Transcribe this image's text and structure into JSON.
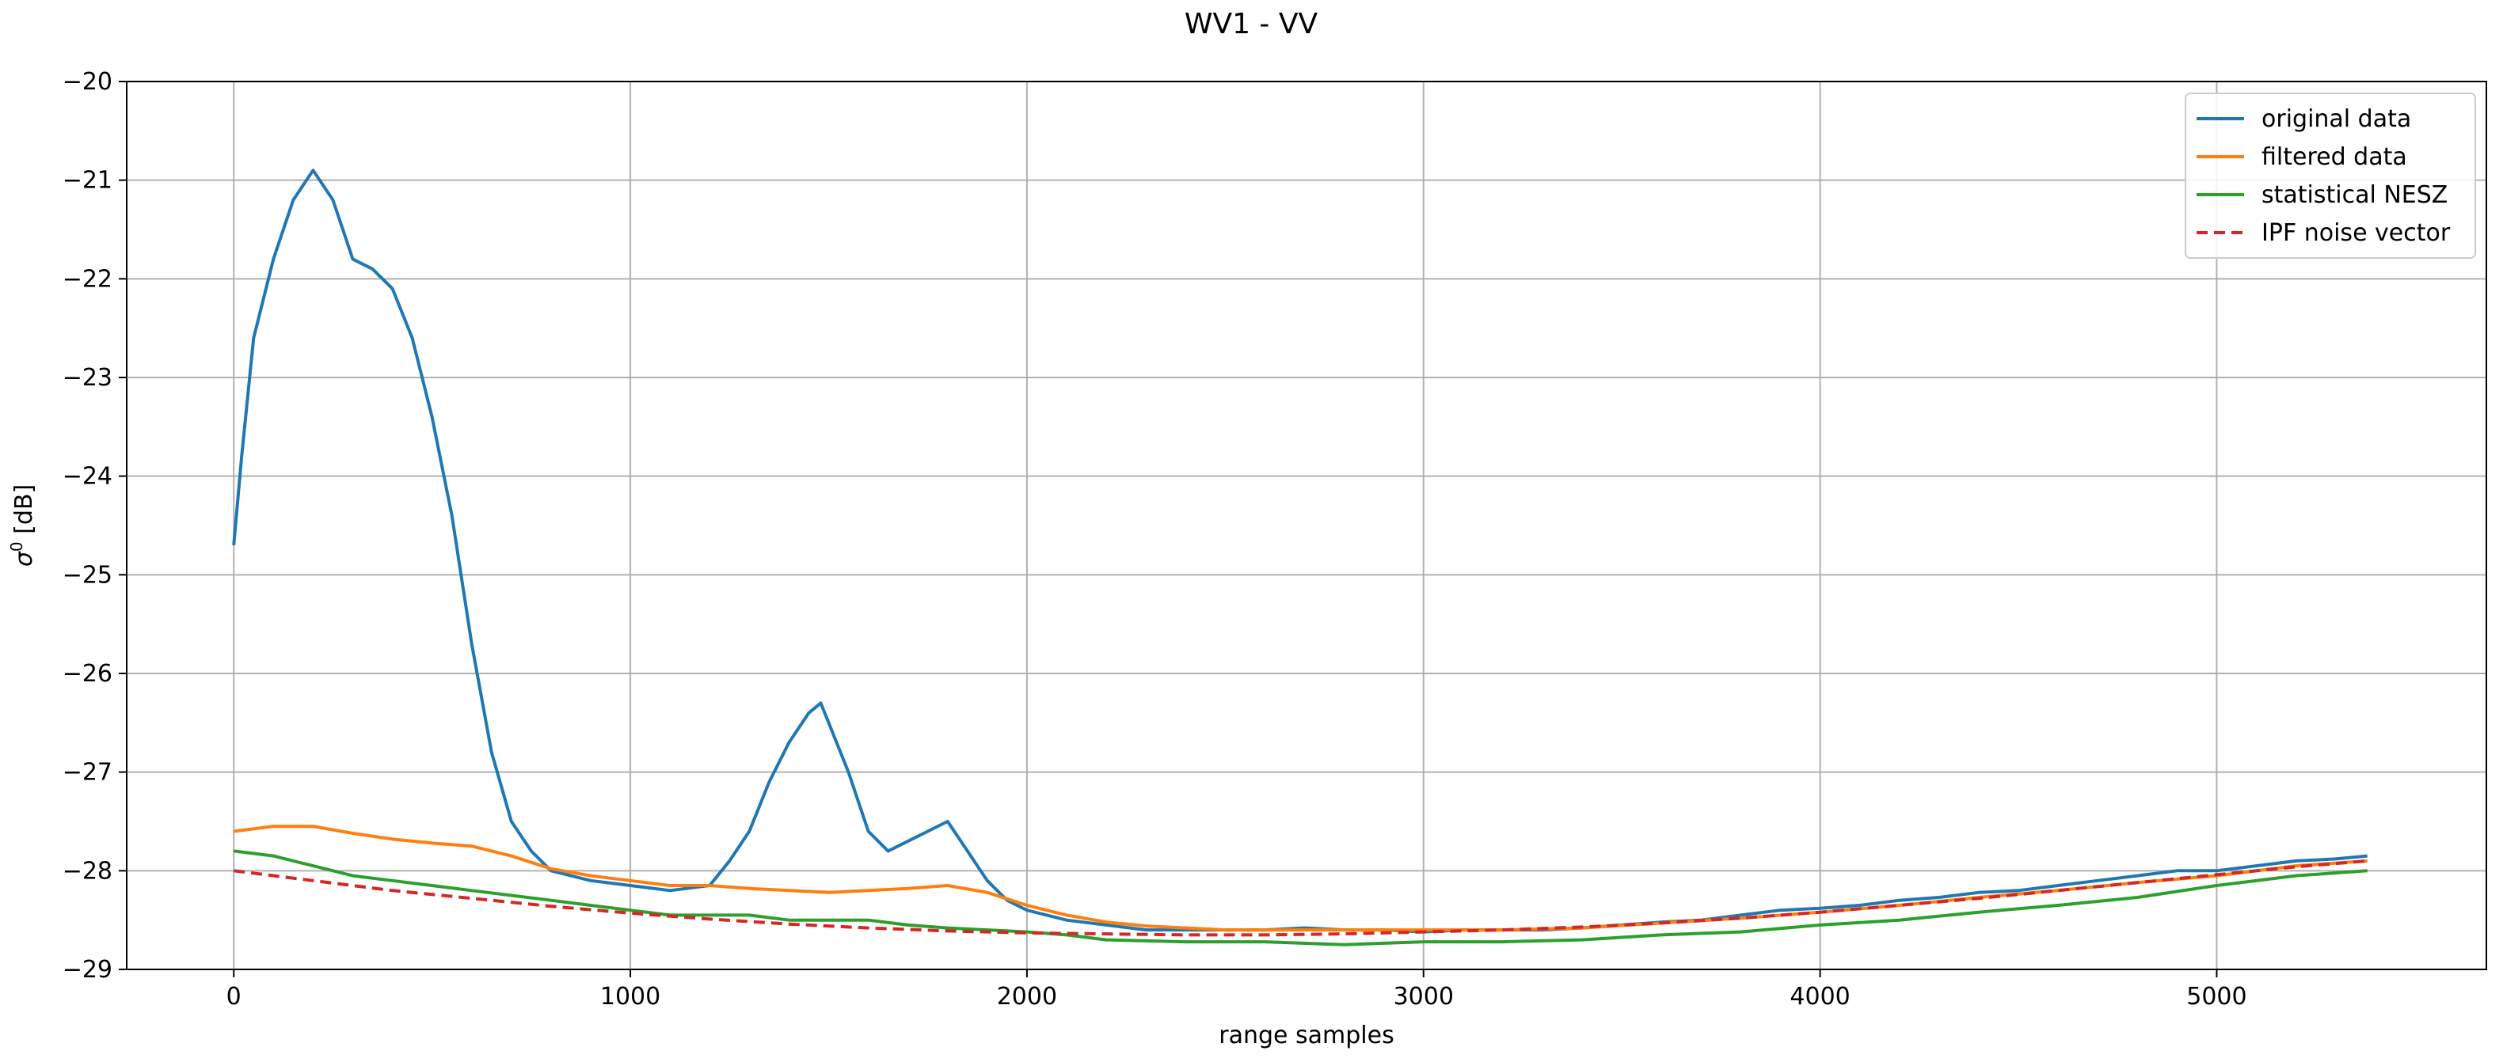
{
  "chart_data": {
    "type": "line",
    "title": "WV1 - VV",
    "xlabel": "range samples",
    "ylabel_symbol": "σ",
    "ylabel_superscript": "0",
    "ylabel_unit": " [dB]",
    "xlim": [
      -270,
      5680
    ],
    "ylim": [
      -29,
      -20
    ],
    "x_ticks": [
      0,
      1000,
      2000,
      3000,
      4000,
      5000
    ],
    "x_tick_labels": [
      "0",
      "1000",
      "2000",
      "3000",
      "4000",
      "5000"
    ],
    "y_ticks": [
      -29,
      -28,
      -27,
      -26,
      -25,
      -24,
      -23,
      -22,
      -21,
      -20
    ],
    "y_tick_labels": [
      "−29",
      "−28",
      "−27",
      "−26",
      "−25",
      "−24",
      "−23",
      "−22",
      "−21",
      "−20"
    ],
    "grid": true,
    "legend_position": "upper-right",
    "series": [
      {
        "name": "original data",
        "color": "#1f77b4",
        "style": "solid",
        "x": [
          0,
          20,
          50,
          100,
          150,
          200,
          250,
          300,
          350,
          400,
          450,
          500,
          550,
          600,
          650,
          700,
          750,
          800,
          900,
          1000,
          1100,
          1200,
          1250,
          1300,
          1350,
          1400,
          1450,
          1480,
          1500,
          1550,
          1600,
          1650,
          1700,
          1750,
          1800,
          1850,
          1900,
          1950,
          2000,
          2100,
          2200,
          2300,
          2400,
          2500,
          2600,
          2700,
          2800,
          2900,
          3000,
          3100,
          3200,
          3300,
          3400,
          3500,
          3600,
          3700,
          3800,
          3900,
          4000,
          4100,
          4200,
          4300,
          4400,
          4500,
          4600,
          4700,
          4800,
          4900,
          5000,
          5100,
          5200,
          5300,
          5380
        ],
        "y": [
          -24.7,
          -23.8,
          -22.6,
          -21.8,
          -21.2,
          -20.9,
          -21.2,
          -21.8,
          -21.9,
          -22.1,
          -22.6,
          -23.4,
          -24.4,
          -25.7,
          -26.8,
          -27.5,
          -27.8,
          -28.0,
          -28.1,
          -28.15,
          -28.2,
          -28.15,
          -27.9,
          -27.6,
          -27.1,
          -26.7,
          -26.4,
          -26.3,
          -26.5,
          -27.0,
          -27.6,
          -27.8,
          -27.7,
          -27.6,
          -27.5,
          -27.8,
          -28.1,
          -28.3,
          -28.4,
          -28.5,
          -28.55,
          -28.6,
          -28.6,
          -28.6,
          -28.6,
          -28.58,
          -28.6,
          -28.6,
          -28.62,
          -28.6,
          -28.6,
          -28.6,
          -28.58,
          -28.55,
          -28.52,
          -28.5,
          -28.45,
          -28.4,
          -28.38,
          -28.35,
          -28.3,
          -28.27,
          -28.22,
          -28.2,
          -28.15,
          -28.1,
          -28.05,
          -28.0,
          -28.0,
          -27.95,
          -27.9,
          -27.88,
          -27.85
        ]
      },
      {
        "name": "filtered data",
        "color": "#ff7f0e",
        "style": "solid",
        "x": [
          0,
          100,
          200,
          300,
          400,
          500,
          600,
          700,
          800,
          900,
          1000,
          1100,
          1200,
          1300,
          1400,
          1500,
          1600,
          1700,
          1800,
          1900,
          2000,
          2100,
          2200,
          2300,
          2400,
          2500,
          2600,
          2800,
          3000,
          3200,
          3400,
          3600,
          3800,
          4000,
          4200,
          4400,
          4600,
          4800,
          5000,
          5200,
          5380
        ],
        "y": [
          -27.6,
          -27.55,
          -27.55,
          -27.62,
          -27.68,
          -27.72,
          -27.75,
          -27.85,
          -27.98,
          -28.05,
          -28.1,
          -28.15,
          -28.15,
          -28.18,
          -28.2,
          -28.22,
          -28.2,
          -28.18,
          -28.15,
          -28.22,
          -28.35,
          -28.45,
          -28.52,
          -28.56,
          -28.58,
          -28.6,
          -28.6,
          -28.6,
          -28.6,
          -28.6,
          -28.58,
          -28.53,
          -28.48,
          -28.42,
          -28.35,
          -28.27,
          -28.2,
          -28.12,
          -28.05,
          -27.95,
          -27.9
        ]
      },
      {
        "name": "statistical NESZ",
        "color": "#2ca02c",
        "style": "solid",
        "x": [
          0,
          100,
          200,
          300,
          400,
          500,
          600,
          700,
          800,
          900,
          1000,
          1100,
          1200,
          1300,
          1400,
          1500,
          1600,
          1700,
          1800,
          1900,
          2000,
          2100,
          2200,
          2400,
          2600,
          2800,
          3000,
          3200,
          3400,
          3600,
          3800,
          4000,
          4200,
          4400,
          4600,
          4800,
          5000,
          5200,
          5380
        ],
        "y": [
          -27.8,
          -27.85,
          -27.95,
          -28.05,
          -28.1,
          -28.15,
          -28.2,
          -28.25,
          -28.3,
          -28.35,
          -28.4,
          -28.45,
          -28.45,
          -28.45,
          -28.5,
          -28.5,
          -28.5,
          -28.55,
          -28.58,
          -28.6,
          -28.62,
          -28.65,
          -28.7,
          -28.72,
          -28.72,
          -28.75,
          -28.72,
          -28.72,
          -28.7,
          -28.65,
          -28.62,
          -28.55,
          -28.5,
          -28.42,
          -28.35,
          -28.27,
          -28.15,
          -28.05,
          -28.0
        ]
      },
      {
        "name": "IPF noise vector",
        "color": "#d62728",
        "style": "dashed",
        "x": [
          0,
          200,
          400,
          600,
          800,
          1000,
          1200,
          1400,
          1600,
          1800,
          2000,
          2200,
          2400,
          2600,
          2800,
          3000,
          3200,
          3400,
          3600,
          3800,
          4000,
          4200,
          4400,
          4600,
          4800,
          5000,
          5200,
          5380
        ],
        "y": [
          -28.0,
          -28.1,
          -28.2,
          -28.28,
          -28.36,
          -28.43,
          -28.49,
          -28.54,
          -28.58,
          -28.61,
          -28.63,
          -28.64,
          -28.65,
          -28.65,
          -28.64,
          -28.62,
          -28.6,
          -28.57,
          -28.53,
          -28.48,
          -28.42,
          -28.35,
          -28.28,
          -28.2,
          -28.12,
          -28.04,
          -27.96,
          -27.9
        ]
      }
    ]
  }
}
